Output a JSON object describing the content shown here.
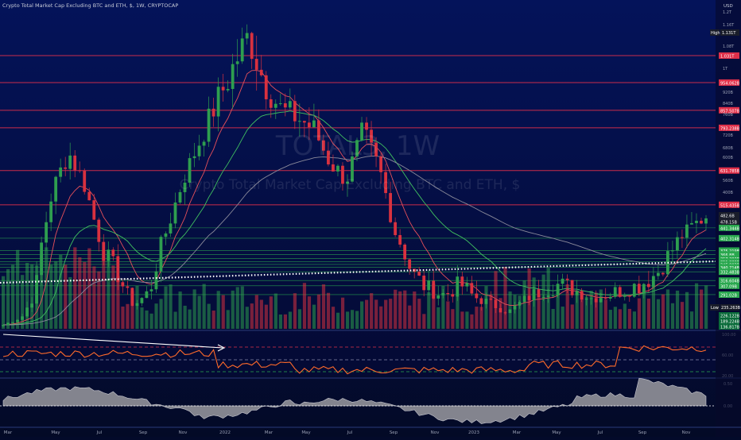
{
  "header": {
    "symbol_line": "Crypto Total Market Cap Excluding BTC and ETH, $, 1W, CRYPTOCAP"
  },
  "watermark": {
    "ticker": "TOTAL3, 1W",
    "name": "Crypto Total Market Cap Excluding BTC and ETH, $"
  },
  "price_axis": {
    "currency": "USD",
    "ticks": [
      "1.2T",
      "1.16T",
      "1.08T",
      "1T",
      "920B",
      "840B",
      "760B",
      "720B",
      "680B",
      "600B",
      "560B",
      "400B"
    ]
  },
  "badges": {
    "high_label": "High",
    "high_value": "1.131T",
    "low_label": "Low",
    "low_value": "235.263B"
  },
  "horizontal_levels": {
    "resistance": [
      "1.031T",
      "954.062B",
      "857.507B",
      "793.238B",
      "631.785B",
      "515.435B"
    ],
    "current": [
      "482.6B",
      "478.15B"
    ],
    "support": [
      "441.344B",
      "402.314B",
      "375.219B",
      "366.8B",
      "357.393B",
      "351.222B",
      "345.803B",
      "340.714B",
      "332.483B",
      "316.604B",
      "307.09B",
      "291.02B"
    ],
    "lower": [
      "226.122B",
      "189.224B",
      "136.817B"
    ]
  },
  "time_axis": {
    "labels": [
      "Mar",
      "May",
      "Jul",
      "Sep",
      "Nov",
      "2022",
      "Mar",
      "May",
      "Jul",
      "Sep",
      "Nov",
      "2023",
      "Mar",
      "May",
      "Jul",
      "Sep",
      "Nov"
    ]
  },
  "rsi_pane": {
    "ticks": [
      "100.00",
      "60.00",
      "20.00"
    ],
    "levels": [
      70,
      50,
      30
    ]
  },
  "osc_pane": {
    "ticks": [
      "0.50",
      "0.00"
    ]
  },
  "colors": {
    "background_top": "#020a3a",
    "background_bottom": "#050d2a",
    "bull": "#2e9e4f",
    "bear": "#d8313f",
    "resistance_line": "#e0304a",
    "support_line": "#2aa84f",
    "ema_fast": "#e8505a",
    "ema_slow": "#40c060",
    "rsi_line": "#ff6a2a",
    "osc_fill": "#9a9aa0"
  },
  "chart_data": {
    "type": "candlestick",
    "timeframe": "1W",
    "date_range": [
      "2021-03",
      "2023-12"
    ],
    "ohlc_close_trace_B": [
      160,
      210,
      300,
      560,
      700,
      580,
      380,
      330,
      260,
      300,
      430,
      600,
      740,
      880,
      990,
      1100,
      950,
      860,
      830,
      790,
      660,
      600,
      780,
      640,
      420,
      330,
      300,
      290,
      310,
      280,
      260,
      240,
      280,
      300,
      310,
      300,
      280,
      290,
      300,
      310,
      330,
      380,
      440,
      480
    ],
    "rsi_range": [
      20,
      100
    ],
    "annotations": [
      {
        "type": "dotted_trendline",
        "desc": "rising support"
      },
      {
        "type": "arrow_trendline",
        "desc": "falling RSI trendline"
      }
    ]
  }
}
